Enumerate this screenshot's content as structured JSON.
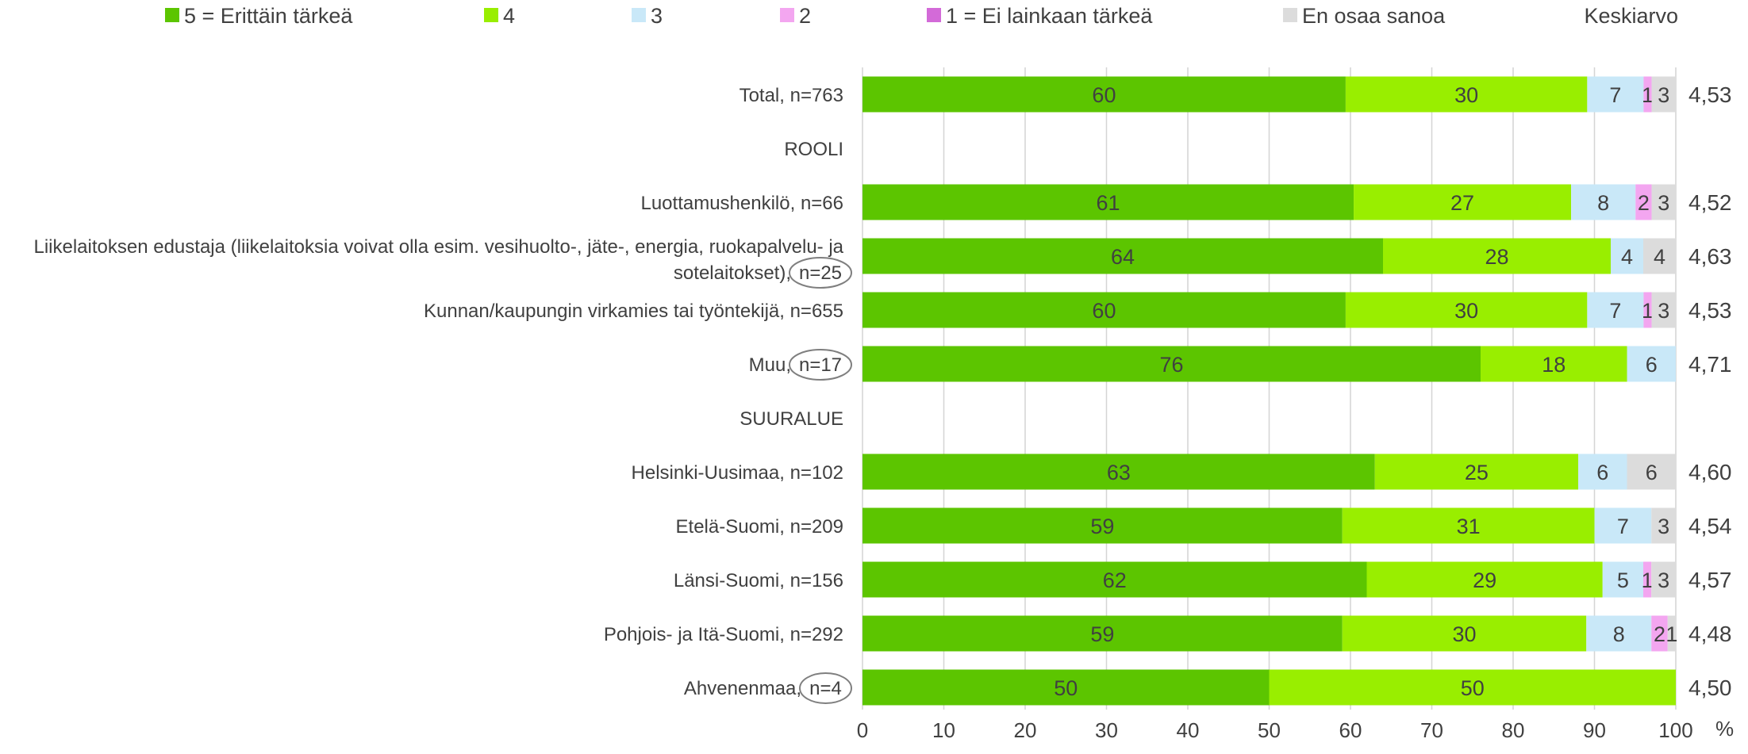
{
  "chart_data": {
    "type": "bar",
    "orientation": "horizontal",
    "stacked": true,
    "mean_header": "Keskiarvo",
    "xlim": [
      0,
      100
    ],
    "x_ticks": [
      "0",
      "10",
      "20",
      "30",
      "40",
      "50",
      "60",
      "70",
      "80",
      "90",
      "100"
    ],
    "x_unit": "%",
    "grid": true,
    "legend_position": "top",
    "series": [
      {
        "name": "5 = Erittäin tärkeä",
        "color": "#5cc500"
      },
      {
        "name": "4",
        "color": "#99ee00"
      },
      {
        "name": "3",
        "color": "#c9e8f8"
      },
      {
        "name": "2",
        "color": "#f3a6f0"
      },
      {
        "name": "1 = Ei lainkaan tärkeä",
        "color": "#d36ad8"
      },
      {
        "name": "En osaa sanoa",
        "color": "#dcdcdc"
      }
    ],
    "rows": [
      {
        "label": "Total, n=763",
        "values": [
          60,
          30,
          7,
          1,
          0,
          3
        ],
        "labels": [
          "60",
          "30",
          "7",
          "1",
          "",
          "3"
        ],
        "mean": "4,53"
      },
      {
        "label": "ROOLI",
        "header": true
      },
      {
        "label": "Luottamushenkilö, n=66",
        "values": [
          61,
          27,
          8,
          2,
          0,
          3
        ],
        "labels": [
          "61",
          "27",
          "8",
          "2",
          "",
          "3"
        ],
        "mean": "4,52"
      },
      {
        "label_lines": [
          "Liikelaitoksen edustaja (liikelaitoksia voivat olla esim. vesihuolto-, jäte-, energia, ruokapalvelu- ja",
          "sotelaitokset),"
        ],
        "n_label": "n=25",
        "values": [
          64,
          28,
          4,
          0,
          0,
          4
        ],
        "labels": [
          "64",
          "28",
          "4",
          "",
          "",
          "4"
        ],
        "mean": "4,63"
      },
      {
        "label": "Kunnan/kaupungin virkamies tai työntekijä, n=655",
        "values": [
          60,
          30,
          7,
          1,
          0,
          3
        ],
        "labels": [
          "60",
          "30",
          "7",
          "1",
          "",
          "3"
        ],
        "mean": "4,53"
      },
      {
        "label": "Muu,",
        "n_label": "n=17",
        "values": [
          76,
          18,
          6,
          0,
          0,
          0
        ],
        "labels": [
          "76",
          "18",
          "6",
          "",
          "",
          ""
        ],
        "mean": "4,71"
      },
      {
        "label": "SUURALUE",
        "header": true
      },
      {
        "label": "Helsinki-Uusimaa, n=102",
        "values": [
          63,
          25,
          6,
          0,
          0,
          6
        ],
        "labels": [
          "63",
          "25",
          "6",
          "",
          "",
          "6"
        ],
        "mean": "4,60"
      },
      {
        "label": "Etelä-Suomi, n=209",
        "values": [
          59,
          31,
          7,
          0,
          0,
          3
        ],
        "labels": [
          "59",
          "31",
          "7",
          "",
          "",
          "3"
        ],
        "mean": "4,54"
      },
      {
        "label": "Länsi-Suomi, n=156",
        "values": [
          62,
          29,
          5,
          1,
          0,
          3
        ],
        "labels": [
          "62",
          "29",
          "5",
          "1",
          "",
          "3"
        ],
        "mean": "4,57"
      },
      {
        "label": "Pohjois- ja Itä-Suomi, n=292",
        "values": [
          59,
          30,
          8,
          2,
          0,
          1
        ],
        "labels": [
          "59",
          "30",
          "8",
          "2",
          "",
          "1"
        ],
        "mean": "4,48"
      },
      {
        "label": "Ahvenenmaa,",
        "n_label": "n=4",
        "values": [
          50,
          50,
          0,
          0,
          0,
          0
        ],
        "labels": [
          "50",
          "50",
          "",
          "",
          "",
          ""
        ],
        "mean": "4,50"
      }
    ]
  }
}
